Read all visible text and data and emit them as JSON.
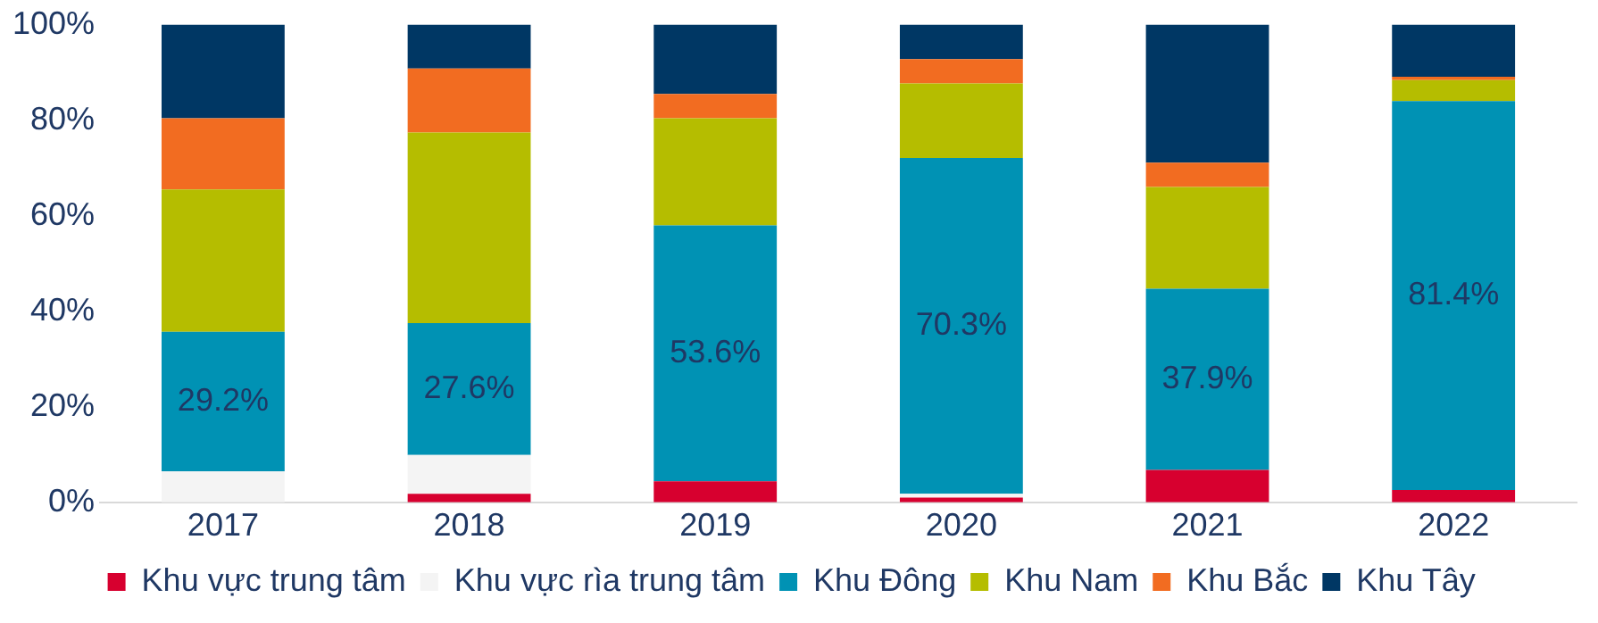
{
  "chart_data": {
    "type": "bar",
    "stacked": true,
    "categories": [
      "2017",
      "2018",
      "2019",
      "2020",
      "2021",
      "2022"
    ],
    "series": [
      {
        "name": "Khu vực trung tâm",
        "color": "#d7002f",
        "values": [
          0,
          1.8,
          4.4,
          1.0,
          6.8,
          2.6
        ]
      },
      {
        "name": "Khu vực rìa trung tâm",
        "color": "#f4f4f4",
        "values": [
          6.5,
          8.1,
          0,
          0.8,
          0,
          0
        ]
      },
      {
        "name": "Khu Đông",
        "color": "#0092b4",
        "values": [
          29.2,
          27.6,
          53.6,
          70.3,
          37.9,
          81.4
        ],
        "value_labels": [
          "29.2%",
          "27.6%",
          "53.6%",
          "70.3%",
          "37.9%",
          "81.4%"
        ]
      },
      {
        "name": "Khu Nam",
        "color": "#b5bd00",
        "values": [
          29.8,
          39.9,
          22.4,
          15.6,
          21.3,
          4.4
        ]
      },
      {
        "name": "Khu Bắc",
        "color": "#f26c21",
        "values": [
          14.9,
          13.4,
          5.1,
          5.1,
          5.1,
          0.7
        ]
      },
      {
        "name": "Khu Tây",
        "color": "#003764",
        "values": [
          19.6,
          9.2,
          14.5,
          7.2,
          28.9,
          10.9
        ]
      }
    ],
    "ylim": [
      0,
      100
    ],
    "yticks": [
      {
        "value": 0,
        "label": "0%"
      },
      {
        "value": 20,
        "label": "20%"
      },
      {
        "value": 40,
        "label": "40%"
      },
      {
        "value": 60,
        "label": "60%"
      },
      {
        "value": 80,
        "label": "80%"
      },
      {
        "value": 100,
        "label": "100%"
      }
    ],
    "grid": false,
    "legend": "bottom"
  }
}
